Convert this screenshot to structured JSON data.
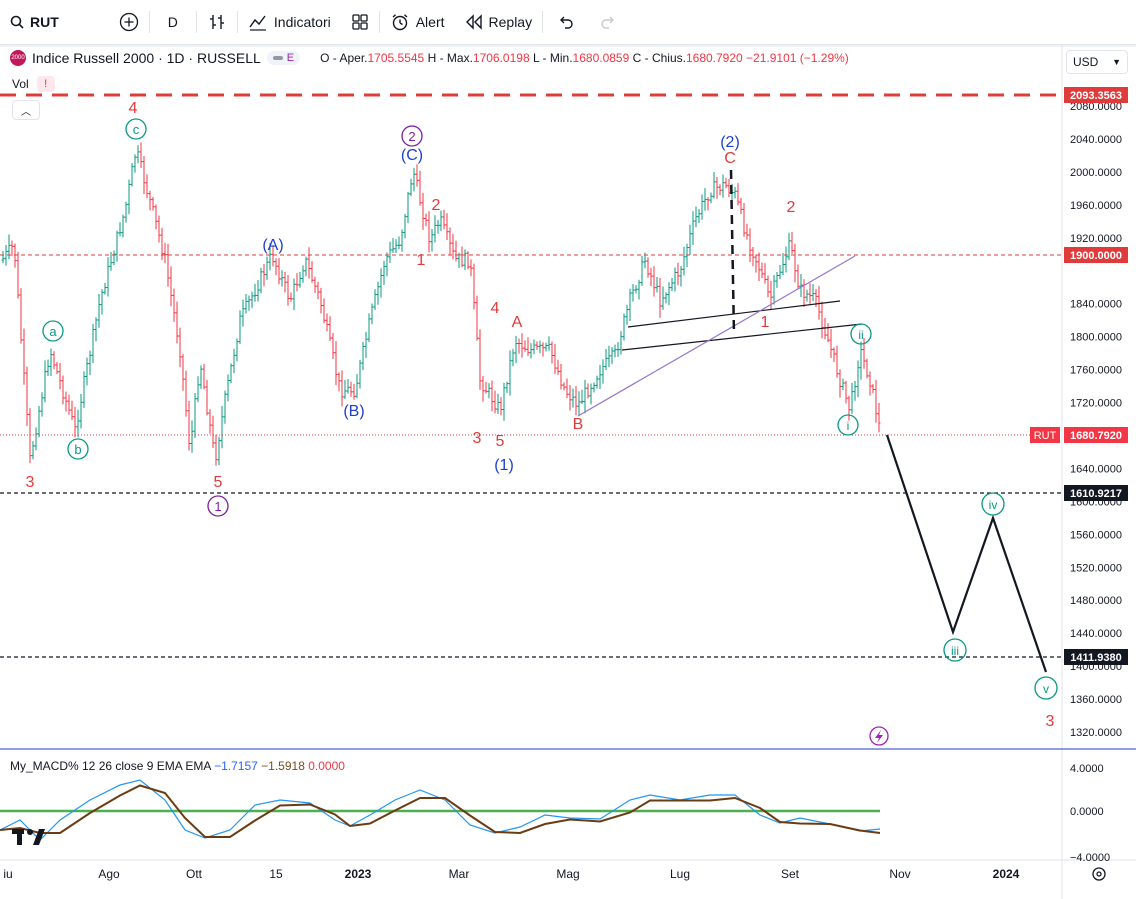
{
  "toolbar": {
    "symbol": "RUT",
    "interval": "D",
    "indicators_label": "Indicatori",
    "alert_label": "Alert",
    "replay_label": "Replay"
  },
  "legend": {
    "title": "Indice Russell 2000 · 1D · RUSSELL",
    "badge": "E",
    "open_label": "O - Aper.",
    "open": "1705.5545",
    "high_label": "H - Max.",
    "high": "1706.0198",
    "low_label": "L - Min.",
    "low": "1680.0859",
    "close_label": "C - Chius.",
    "close": "1680.7920",
    "change": "−21.9101 (−1.29%)",
    "vol_label": "Vol",
    "vol_warning": "!"
  },
  "currency": "USD",
  "price_axis": {
    "ticks": [
      "2080.0000",
      "2040.0000",
      "2000.0000",
      "1960.0000",
      "1920.0000",
      "1840.0000",
      "1800.0000",
      "1760.0000",
      "1720.0000",
      "1640.0000",
      "1600.0000",
      "1560.0000",
      "1520.0000",
      "1480.0000",
      "1440.0000",
      "1400.0000",
      "1360.0000",
      "1320.0000"
    ],
    "labels": {
      "top": "2093.3563",
      "resistance": "1900.0000",
      "last": "1680.7920",
      "symbol_tag": "RUT",
      "level1": "1610.9217",
      "level2": "1411.9380"
    }
  },
  "time_axis": [
    "iu",
    "Ago",
    "Ott",
    "15",
    "2023",
    "Mar",
    "Mag",
    "Lug",
    "Set",
    "Nov",
    "2024"
  ],
  "macd": {
    "label": "My_MACD% 12 26 close 9 EMA EMA",
    "v1": "−1.7157",
    "v2": "−1.5918",
    "v3": "0.0000",
    "ticks": [
      "4.0000",
      "0.0000",
      "−4.0000"
    ]
  },
  "wave_labels": {
    "c4": "4",
    "cc": "c",
    "ca": "a",
    "cb": "b",
    "c3": "3",
    "c5": "5",
    "c1": "1",
    "A_paren": "(A)",
    "B_paren": "(B)",
    "C_paren": "(C)",
    "circ2": "2",
    "red2a": "2",
    "red1a": "1",
    "red4": "4",
    "redA": "A",
    "red3": "3",
    "red5": "5",
    "paren1": "(1)",
    "redB": "B",
    "paren2": "(2)",
    "redC": "C",
    "red2b": "2",
    "red1b": "1",
    "ii": "ii",
    "i": "i",
    "iv": "iv",
    "iii": "iii",
    "v": "v",
    "red3b": "3"
  },
  "colors": {
    "up": "#089981",
    "down": "#f23645",
    "blue_wave": "#1e3fcf",
    "teal_wave": "#089981",
    "purple_wave": "#7b1fa2",
    "macd": "#2196f3",
    "signal": "#6d3b12"
  }
}
